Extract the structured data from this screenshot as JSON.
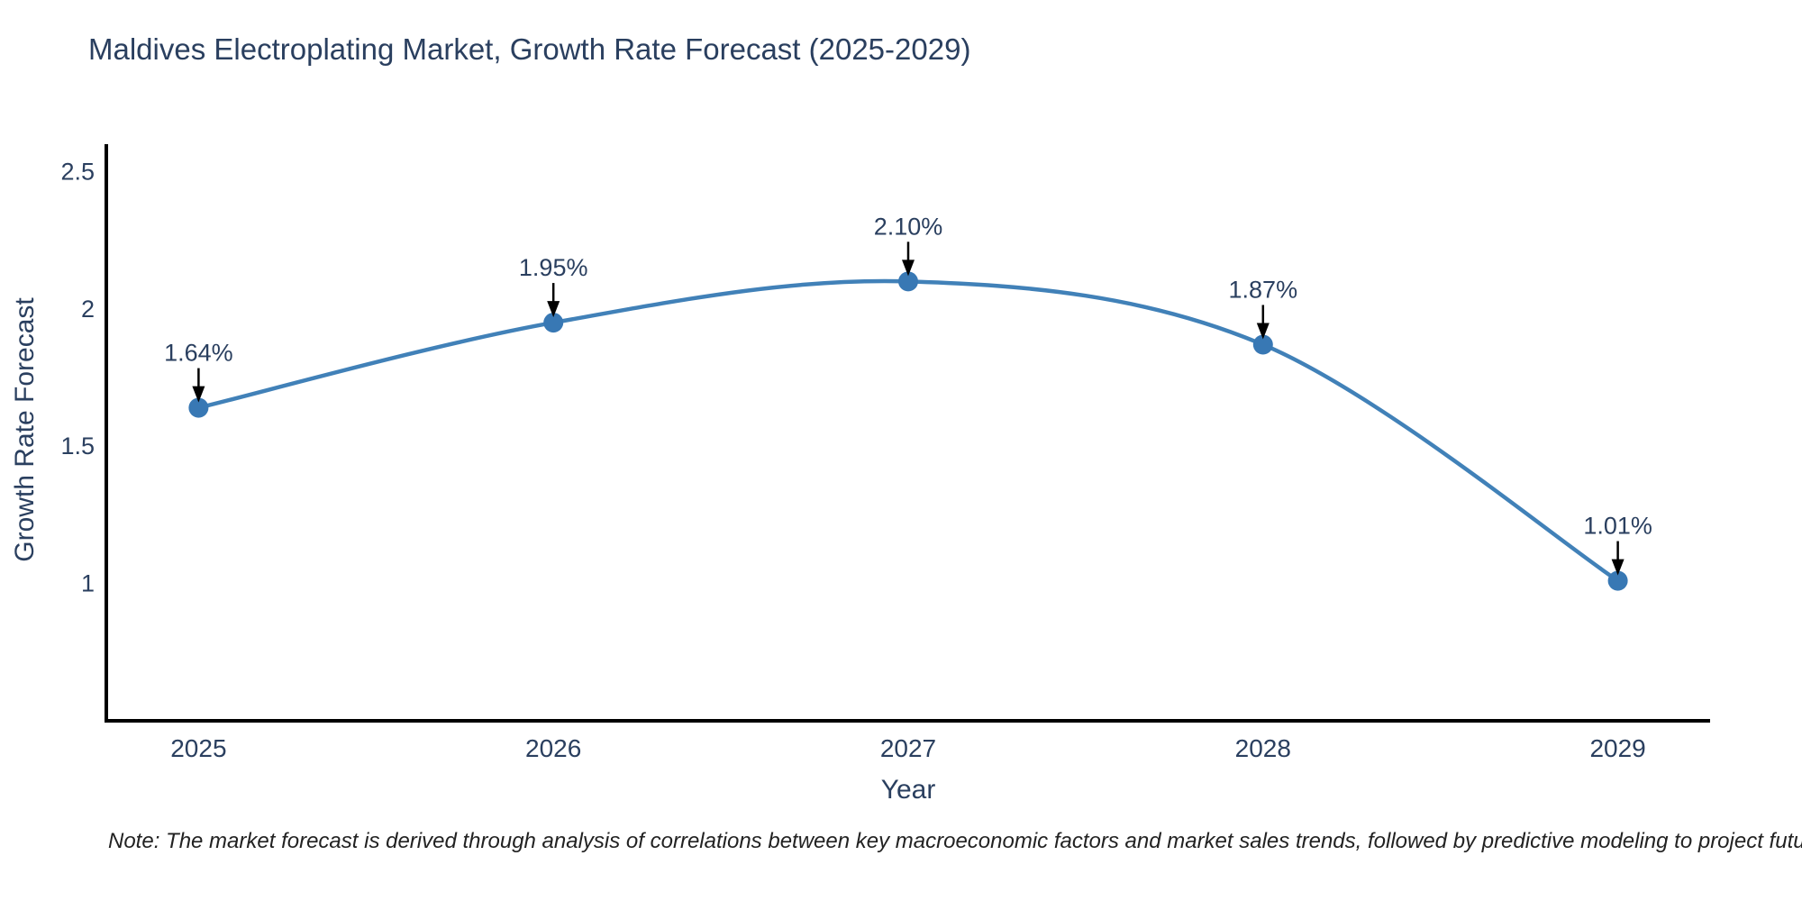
{
  "title": "Maldives Electroplating Market, Growth Rate Forecast (2025-2029)",
  "note": "Note: The market forecast is derived through analysis of correlations between key macroeconomic factors and market sales trends, followed by predictive modeling to project future sales",
  "colors": {
    "text": "#2a3f5f",
    "line": "#4181b8",
    "marker": "#3878b4",
    "axis": "#000000",
    "arrow": "#000000",
    "background": "#ffffff",
    "note_text": "#222222"
  },
  "chart_data": {
    "type": "line",
    "title": "Maldives Electroplating Market, Growth Rate Forecast (2025-2029)",
    "x": [
      2025,
      2026,
      2027,
      2028,
      2029
    ],
    "values": [
      1.64,
      1.95,
      2.1,
      1.87,
      1.01
    ],
    "point_labels": [
      "1.64%",
      "1.95%",
      "2.10%",
      "1.87%",
      "1.01%"
    ],
    "xlabel": "Year",
    "ylabel": "Growth Rate Forecast",
    "xlim": [
      2024.74,
      2029.26
    ],
    "ylim": [
      0.5,
      2.6
    ],
    "yticks": [
      1,
      1.5,
      2,
      2.5
    ],
    "ytick_labels": [
      "1",
      "1.5",
      "2",
      "2.5"
    ],
    "xticks": [
      2025,
      2026,
      2027,
      2028,
      2029
    ],
    "xtick_labels": [
      "2025",
      "2026",
      "2027",
      "2028",
      "2029"
    ],
    "grid": false,
    "legend": "none",
    "line_shape": "spline"
  }
}
